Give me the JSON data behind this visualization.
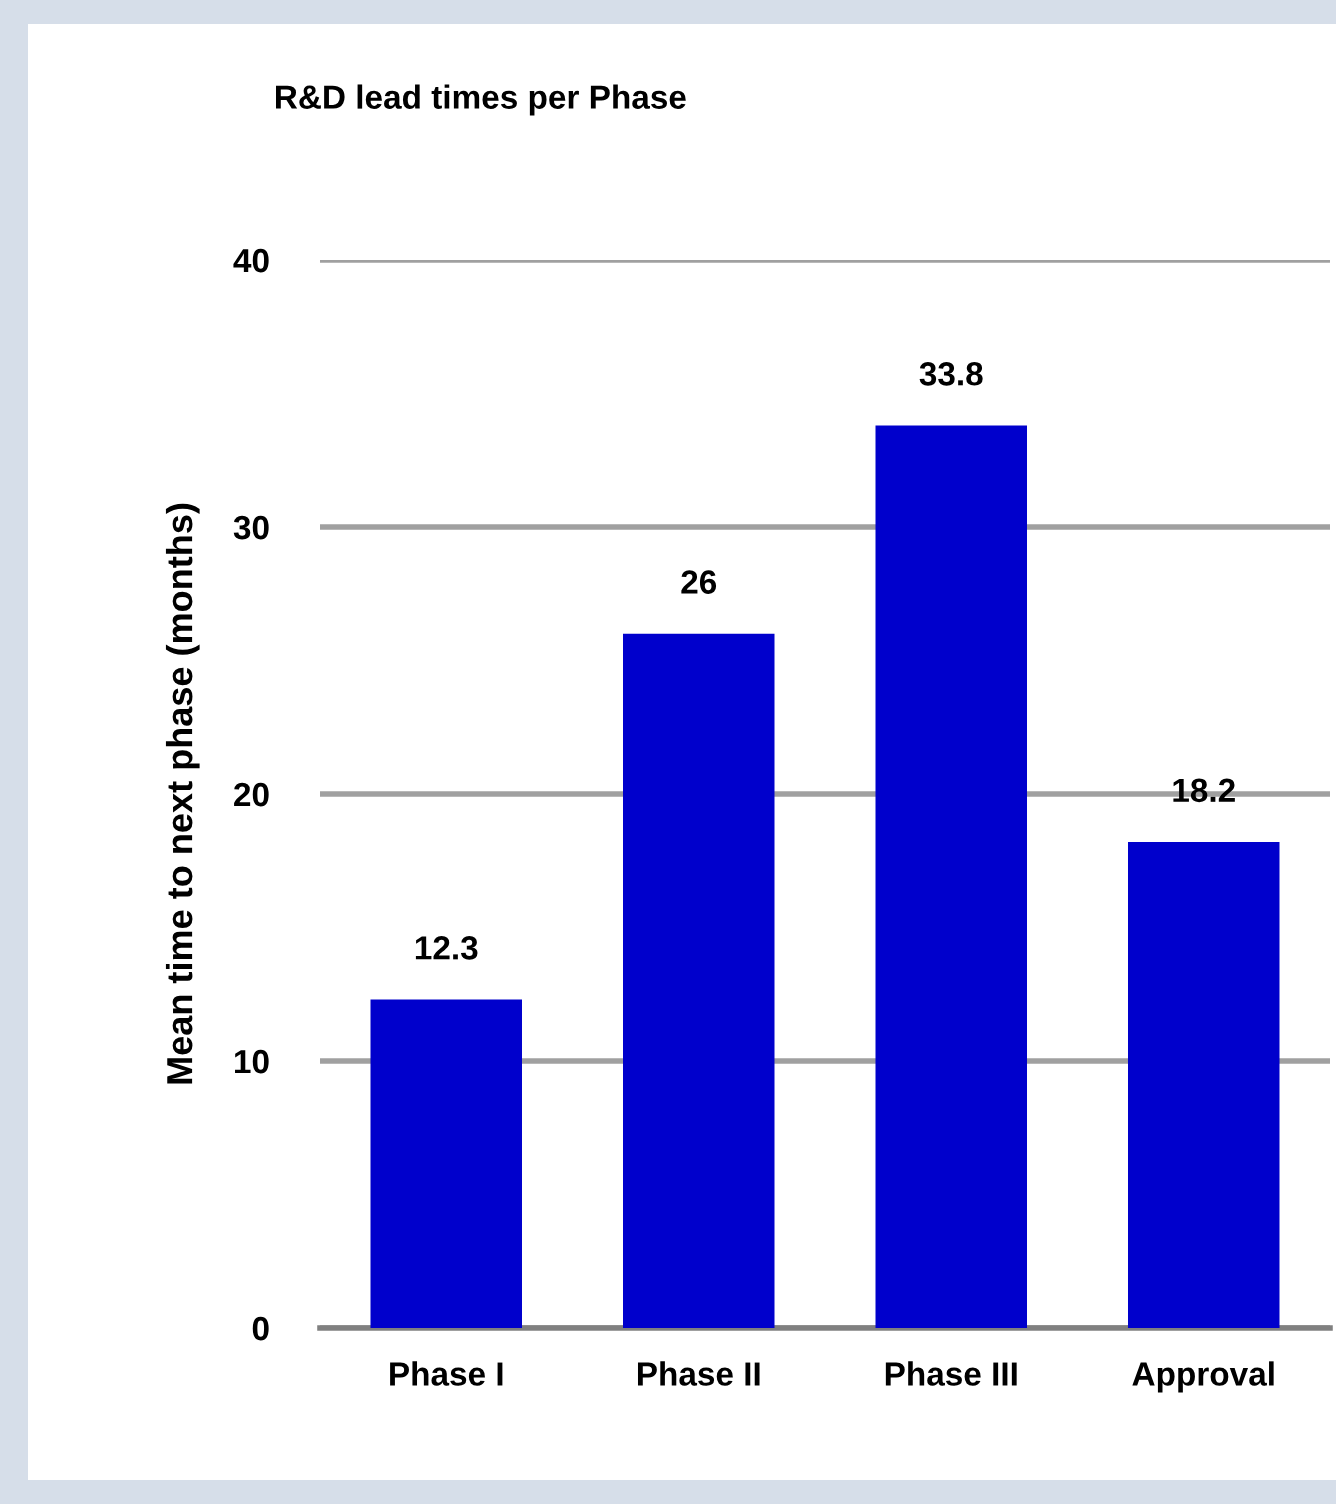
{
  "chart_data": {
    "type": "bar",
    "title": "R&D lead times per Phase",
    "ylabel": "Mean time to next phase (months)",
    "categories": [
      "Phase I",
      "Phase II",
      "Phase III",
      "Approval"
    ],
    "values": [
      12.3,
      26,
      33.8,
      18.2
    ],
    "color": "#0000cc",
    "ylim": [
      0,
      40
    ],
    "yticks": [
      0,
      10,
      20,
      30,
      40
    ],
    "grid": "y",
    "data_labels": true
  }
}
